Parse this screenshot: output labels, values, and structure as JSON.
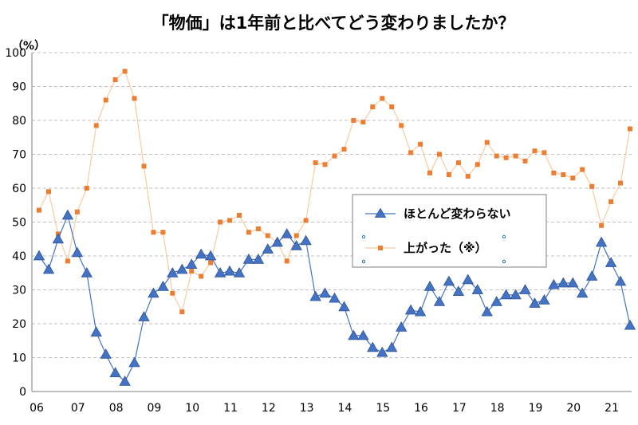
{
  "chart_data": {
    "type": "line",
    "title": "「物価」は1年前と比べてどう変わりましたか？",
    "ylabel": "（%）",
    "xlabel": "",
    "ylim": [
      0,
      100
    ],
    "yticks": [
      "0",
      "10",
      "20",
      "30",
      "40",
      "50",
      "60",
      "70",
      "80",
      "90",
      "100"
    ],
    "x_tick_labels": [
      "06",
      "07",
      "08",
      "09",
      "10",
      "11",
      "12",
      "13",
      "14",
      "15",
      "16",
      "17",
      "18",
      "19",
      "20",
      "21"
    ],
    "grid": true,
    "legend_position": "center-right",
    "colors": {
      "series1": "#4472C4",
      "series2": "#ED7D31",
      "series2_line": "#F8CBA0"
    },
    "series": [
      {
        "name": "ほとんど変わらない",
        "marker": "triangle",
        "values": [
          40,
          36,
          45,
          52,
          41,
          35,
          17.5,
          11,
          5.5,
          3,
          8.5,
          22,
          29,
          31,
          35,
          36,
          37.5,
          40.5,
          40,
          35,
          35.5,
          35,
          39,
          39,
          42,
          44,
          46.5,
          43,
          44.5,
          28,
          29,
          27.5,
          25,
          16.5,
          16.5,
          13,
          11.5,
          13,
          19,
          24,
          23.5,
          31,
          26.5,
          32.5,
          29.5,
          33,
          30,
          23.5,
          26.5,
          28.5,
          28.5,
          30,
          26,
          27,
          31.5,
          32,
          32,
          29,
          34,
          44,
          38,
          32.5,
          19.5
        ]
      },
      {
        "name": "上がった（※）",
        "marker": "square",
        "values": [
          53.5,
          59,
          46.5,
          38.5,
          53,
          60,
          78.5,
          86,
          92,
          94.5,
          86.5,
          66.5,
          47,
          47,
          29,
          23.5,
          35.5,
          34,
          38,
          50,
          50.5,
          52,
          47,
          48,
          46,
          44,
          38.5,
          46,
          50.5,
          67.5,
          67,
          69.5,
          71.5,
          80,
          79.5,
          84,
          86.5,
          84,
          78.5,
          70.5,
          73,
          64.5,
          70,
          64,
          67.5,
          63.5,
          67,
          73.5,
          69.5,
          69,
          69.5,
          68,
          71,
          70.5,
          64.5,
          64,
          63,
          65.5,
          60.5,
          49,
          56,
          61.5,
          77.5
        ]
      }
    ]
  }
}
